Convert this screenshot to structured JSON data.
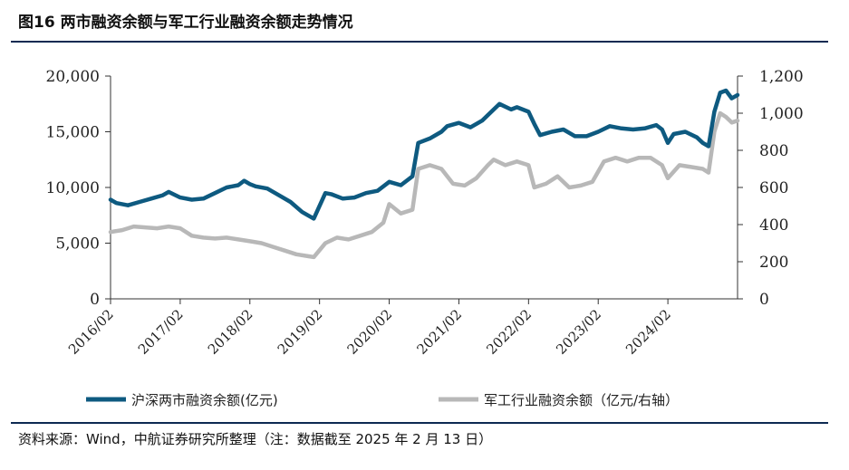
{
  "title": "图16  两市融资余额与军工行业融资余额走势情况",
  "source": "资料来源：Wind，中航证券研究所整理（注：数据截至 2025 年 2 月 13 日）",
  "colors": {
    "rule": "#0d2a52",
    "axis": "#333333"
  },
  "chart_data": {
    "type": "line",
    "x_ticks": [
      "2016/02",
      "2017/02",
      "2018/02",
      "2019/02",
      "2020/02",
      "2021/02",
      "2022/02",
      "2023/02",
      "2024/02"
    ],
    "x_range": [
      "2016-02",
      "2025-02"
    ],
    "y_left": {
      "ticks": [
        "0",
        "5,000",
        "10,000",
        "15,000",
        "20,000"
      ],
      "range": [
        0,
        20000
      ]
    },
    "y_right": {
      "ticks": [
        "0",
        "200",
        "400",
        "600",
        "800",
        "1,000",
        "1,200"
      ],
      "range": [
        0,
        1200
      ]
    },
    "legend_position": "bottom",
    "series": [
      {
        "name": "沪深两市融资余额(亿元)",
        "axis": "left",
        "color": "#0e5a80",
        "points": [
          [
            "2016-02",
            8900
          ],
          [
            "2016-03",
            8600
          ],
          [
            "2016-05",
            8400
          ],
          [
            "2016-07",
            8700
          ],
          [
            "2016-09",
            9000
          ],
          [
            "2016-11",
            9300
          ],
          [
            "2016-12",
            9600
          ],
          [
            "2017-02",
            9100
          ],
          [
            "2017-04",
            8900
          ],
          [
            "2017-06",
            9000
          ],
          [
            "2017-08",
            9500
          ],
          [
            "2017-10",
            10000
          ],
          [
            "2017-12",
            10200
          ],
          [
            "2018-01",
            10600
          ],
          [
            "2018-02",
            10300
          ],
          [
            "2018-03",
            10100
          ],
          [
            "2018-05",
            9900
          ],
          [
            "2018-07",
            9300
          ],
          [
            "2018-09",
            8700
          ],
          [
            "2018-11",
            7800
          ],
          [
            "2018-12",
            7500
          ],
          [
            "2019-01",
            7200
          ],
          [
            "2019-03",
            9500
          ],
          [
            "2019-04",
            9400
          ],
          [
            "2019-06",
            9000
          ],
          [
            "2019-08",
            9100
          ],
          [
            "2019-10",
            9500
          ],
          [
            "2019-12",
            9700
          ],
          [
            "2020-02",
            10500
          ],
          [
            "2020-04",
            10200
          ],
          [
            "2020-06",
            11000
          ],
          [
            "2020-07",
            14000
          ],
          [
            "2020-09",
            14400
          ],
          [
            "2020-11",
            15000
          ],
          [
            "2020-12",
            15500
          ],
          [
            "2021-02",
            15800
          ],
          [
            "2021-04",
            15400
          ],
          [
            "2021-06",
            16000
          ],
          [
            "2021-08",
            17000
          ],
          [
            "2021-09",
            17500
          ],
          [
            "2021-11",
            17000
          ],
          [
            "2021-12",
            17200
          ],
          [
            "2022-02",
            16800
          ],
          [
            "2022-03",
            15700
          ],
          [
            "2022-04",
            14700
          ],
          [
            "2022-06",
            15000
          ],
          [
            "2022-08",
            15200
          ],
          [
            "2022-10",
            14600
          ],
          [
            "2022-12",
            14600
          ],
          [
            "2023-02",
            15000
          ],
          [
            "2023-04",
            15500
          ],
          [
            "2023-06",
            15300
          ],
          [
            "2023-08",
            15200
          ],
          [
            "2023-10",
            15300
          ],
          [
            "2023-12",
            15600
          ],
          [
            "2024-01",
            15200
          ],
          [
            "2024-02",
            14000
          ],
          [
            "2024-03",
            14800
          ],
          [
            "2024-05",
            15000
          ],
          [
            "2024-07",
            14500
          ],
          [
            "2024-08",
            14000
          ],
          [
            "2024-09",
            13700
          ],
          [
            "2024-10",
            16800
          ],
          [
            "2024-11",
            18500
          ],
          [
            "2024-12",
            18700
          ],
          [
            "2025-01",
            18000
          ],
          [
            "2025-02",
            18300
          ]
        ]
      },
      {
        "name": "军工行业融资余额（亿元/右轴）",
        "axis": "right",
        "color": "#b8b8b8",
        "points": [
          [
            "2016-02",
            360
          ],
          [
            "2016-04",
            370
          ],
          [
            "2016-06",
            390
          ],
          [
            "2016-08",
            385
          ],
          [
            "2016-10",
            380
          ],
          [
            "2016-12",
            390
          ],
          [
            "2017-02",
            380
          ],
          [
            "2017-04",
            340
          ],
          [
            "2017-06",
            330
          ],
          [
            "2017-08",
            325
          ],
          [
            "2017-10",
            330
          ],
          [
            "2017-12",
            320
          ],
          [
            "2018-02",
            310
          ],
          [
            "2018-04",
            300
          ],
          [
            "2018-06",
            280
          ],
          [
            "2018-08",
            260
          ],
          [
            "2018-10",
            240
          ],
          [
            "2018-12",
            230
          ],
          [
            "2019-01",
            225
          ],
          [
            "2019-03",
            300
          ],
          [
            "2019-05",
            330
          ],
          [
            "2019-07",
            320
          ],
          [
            "2019-09",
            340
          ],
          [
            "2019-11",
            360
          ],
          [
            "2020-01",
            410
          ],
          [
            "2020-02",
            510
          ],
          [
            "2020-04",
            460
          ],
          [
            "2020-06",
            480
          ],
          [
            "2020-07",
            700
          ],
          [
            "2020-09",
            720
          ],
          [
            "2020-11",
            700
          ],
          [
            "2021-01",
            620
          ],
          [
            "2021-03",
            610
          ],
          [
            "2021-05",
            650
          ],
          [
            "2021-07",
            720
          ],
          [
            "2021-08",
            750
          ],
          [
            "2021-10",
            720
          ],
          [
            "2021-12",
            740
          ],
          [
            "2022-02",
            720
          ],
          [
            "2022-03",
            600
          ],
          [
            "2022-05",
            620
          ],
          [
            "2022-07",
            660
          ],
          [
            "2022-09",
            600
          ],
          [
            "2022-11",
            610
          ],
          [
            "2023-01",
            630
          ],
          [
            "2023-03",
            740
          ],
          [
            "2023-05",
            760
          ],
          [
            "2023-07",
            740
          ],
          [
            "2023-09",
            760
          ],
          [
            "2023-11",
            760
          ],
          [
            "2024-01",
            720
          ],
          [
            "2024-02",
            650
          ],
          [
            "2024-04",
            720
          ],
          [
            "2024-06",
            710
          ],
          [
            "2024-08",
            700
          ],
          [
            "2024-09",
            680
          ],
          [
            "2024-10",
            900
          ],
          [
            "2024-11",
            1000
          ],
          [
            "2024-12",
            980
          ],
          [
            "2025-01",
            950
          ],
          [
            "2025-02",
            960
          ]
        ]
      }
    ]
  }
}
